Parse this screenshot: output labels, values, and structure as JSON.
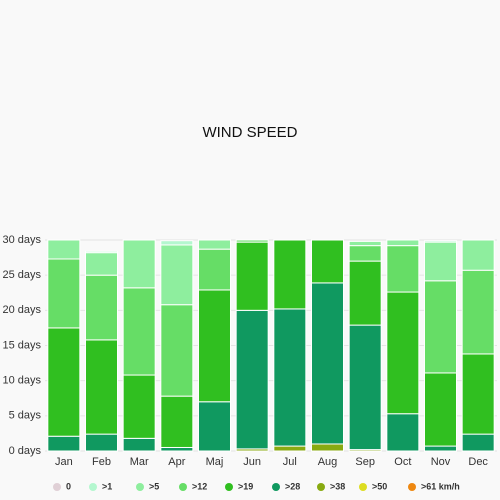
{
  "chart_data": {
    "type": "stacked_bar",
    "title": "WIND SPEED",
    "categories": [
      "Jan",
      "Feb",
      "Mar",
      "Apr",
      "Maj",
      "Jun",
      "Jul",
      "Aug",
      "Sep",
      "Oct",
      "Nov",
      "Dec"
    ],
    "series": [
      {
        "name": "0",
        "color": "#e0d0d6",
        "values": [
          0,
          0,
          0,
          0,
          0,
          0,
          0,
          0,
          0,
          0,
          0,
          0
        ]
      },
      {
        "name": ">1",
        "color": "#b4f7cf",
        "values": [
          0,
          0.2,
          0,
          0.6,
          0,
          0,
          0,
          0,
          0,
          0,
          0.2,
          0
        ]
      },
      {
        "name": ">5",
        "color": "#8eee9e",
        "values": [
          2.7,
          3.2,
          6.8,
          8.5,
          1.3,
          0,
          0,
          0,
          0.6,
          0.8,
          5.5,
          4.3
        ]
      },
      {
        "name": ">12",
        "color": "#66dd66",
        "values": [
          9.8,
          9.2,
          12.4,
          13.0,
          5.8,
          0.3,
          0,
          0,
          2.2,
          6.6,
          13.1,
          11.9
        ]
      },
      {
        "name": ">19",
        "color": "#30bf20",
        "values": [
          15.4,
          13.4,
          9.0,
          7.3,
          15.9,
          9.7,
          9.8,
          6.1,
          9.1,
          17.3,
          10.4,
          11.4
        ]
      },
      {
        "name": ">28",
        "color": "#109960",
        "values": [
          2.1,
          2.4,
          1.8,
          0.5,
          7.0,
          19.7,
          19.5,
          22.9,
          17.7,
          5.3,
          0.7,
          2.4
        ]
      },
      {
        "name": ">38",
        "color": "#88aa11",
        "values": [
          0,
          0,
          0,
          0,
          0,
          0.3,
          0.7,
          1.0,
          0.2,
          0,
          0,
          0
        ]
      },
      {
        "name": ">50",
        "color": "#dddd22",
        "values": [
          0,
          0,
          0,
          0,
          0,
          0,
          0,
          0,
          0,
          0,
          0,
          0
        ]
      },
      {
        "name": ">61 km/h",
        "color": "#ee8811",
        "values": [
          0,
          0,
          0,
          0,
          0,
          0,
          0,
          0,
          0,
          0,
          0,
          0
        ]
      }
    ],
    "ylim": [
      0,
      30
    ],
    "yticks": [
      {
        "value": 0,
        "label": "0 days"
      },
      {
        "value": 5,
        "label": "5 days"
      },
      {
        "value": 10,
        "label": "10 days"
      },
      {
        "value": 15,
        "label": "15 days"
      },
      {
        "value": 20,
        "label": "20 days"
      },
      {
        "value": 25,
        "label": "25 days"
      },
      {
        "value": 30,
        "label": "30 days"
      }
    ],
    "grid": true
  }
}
